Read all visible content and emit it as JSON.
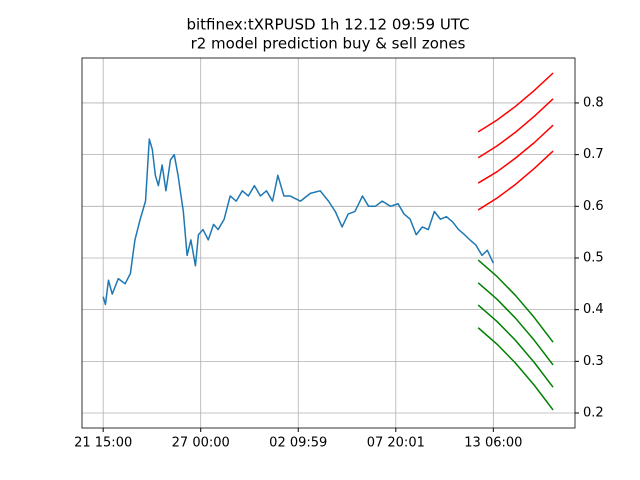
{
  "chart_data": {
    "type": "line",
    "title": [
      "bitfinex:tXRPUSD 1h 12.12 09:59 UTC",
      "r2 model prediction buy & sell zones"
    ],
    "xlim": [
      -28,
      624
    ],
    "xticks": [
      {
        "value": 0,
        "label": "21 15:00"
      },
      {
        "value": 129,
        "label": "27 00:00"
      },
      {
        "value": 258,
        "label": "02 09:59"
      },
      {
        "value": 387,
        "label": "07 20:01"
      },
      {
        "value": 516,
        "label": "13 06:00"
      }
    ],
    "ylim": [
      0.171,
      0.887
    ],
    "yticks": [
      0.2,
      0.3,
      0.4,
      0.5,
      0.6,
      0.7,
      0.8
    ],
    "y_axis_side": "right",
    "grid": true,
    "series": [
      {
        "color": "#1f77b4",
        "x": [
          0,
          3,
          7,
          12,
          20,
          29,
          36,
          42,
          49,
          56,
          61,
          65,
          69,
          73,
          78,
          83,
          89,
          94,
          99,
          106,
          111,
          116,
          122,
          126,
          132,
          139,
          146,
          152,
          160,
          168,
          176,
          184,
          192,
          200,
          208,
          216,
          224,
          231,
          239,
          247,
          261,
          274,
          287,
          298,
          307,
          316,
          324,
          333,
          343,
          351,
          360,
          369,
          380,
          390,
          398,
          406,
          414,
          422,
          430,
          438,
          446,
          454,
          462,
          470,
          478,
          485,
          493,
          501,
          508,
          516
        ],
        "values": [
          0.425,
          0.41,
          0.457,
          0.43,
          0.46,
          0.45,
          0.47,
          0.535,
          0.575,
          0.61,
          0.73,
          0.71,
          0.66,
          0.64,
          0.68,
          0.63,
          0.69,
          0.7,
          0.66,
          0.59,
          0.505,
          0.535,
          0.485,
          0.545,
          0.555,
          0.535,
          0.565,
          0.555,
          0.575,
          0.62,
          0.61,
          0.63,
          0.62,
          0.64,
          0.62,
          0.63,
          0.61,
          0.66,
          0.62,
          0.62,
          0.61,
          0.625,
          0.63,
          0.61,
          0.59,
          0.56,
          0.585,
          0.59,
          0.62,
          0.6,
          0.6,
          0.61,
          0.6,
          0.605,
          0.585,
          0.575,
          0.545,
          0.56,
          0.555,
          0.59,
          0.575,
          0.58,
          0.57,
          0.555,
          0.545,
          0.535,
          0.525,
          0.505,
          0.515,
          0.49
        ]
      },
      {
        "color": "#ff0000",
        "x": [
          496,
          521,
          545,
          570,
          595
        ],
        "values": [
          0.744,
          0.767,
          0.793,
          0.824,
          0.858
        ]
      },
      {
        "color": "#ff0000",
        "x": [
          496,
          521,
          545,
          570,
          595
        ],
        "values": [
          0.694,
          0.717,
          0.743,
          0.774,
          0.808
        ]
      },
      {
        "color": "#ff0000",
        "x": [
          496,
          521,
          545,
          570,
          595
        ],
        "values": [
          0.645,
          0.667,
          0.693,
          0.723,
          0.757
        ]
      },
      {
        "color": "#ff0000",
        "x": [
          496,
          521,
          545,
          570,
          595
        ],
        "values": [
          0.593,
          0.616,
          0.642,
          0.673,
          0.707
        ]
      },
      {
        "color": "#008000",
        "x": [
          496,
          521,
          545,
          570,
          595
        ],
        "values": [
          0.496,
          0.464,
          0.428,
          0.385,
          0.337
        ]
      },
      {
        "color": "#008000",
        "x": [
          496,
          521,
          545,
          570,
          595
        ],
        "values": [
          0.452,
          0.42,
          0.384,
          0.341,
          0.293
        ]
      },
      {
        "color": "#008000",
        "x": [
          496,
          521,
          545,
          570,
          595
        ],
        "values": [
          0.409,
          0.377,
          0.341,
          0.298,
          0.25
        ]
      },
      {
        "color": "#008000",
        "x": [
          496,
          521,
          545,
          570,
          595
        ],
        "values": [
          0.365,
          0.333,
          0.297,
          0.254,
          0.206
        ]
      }
    ]
  }
}
